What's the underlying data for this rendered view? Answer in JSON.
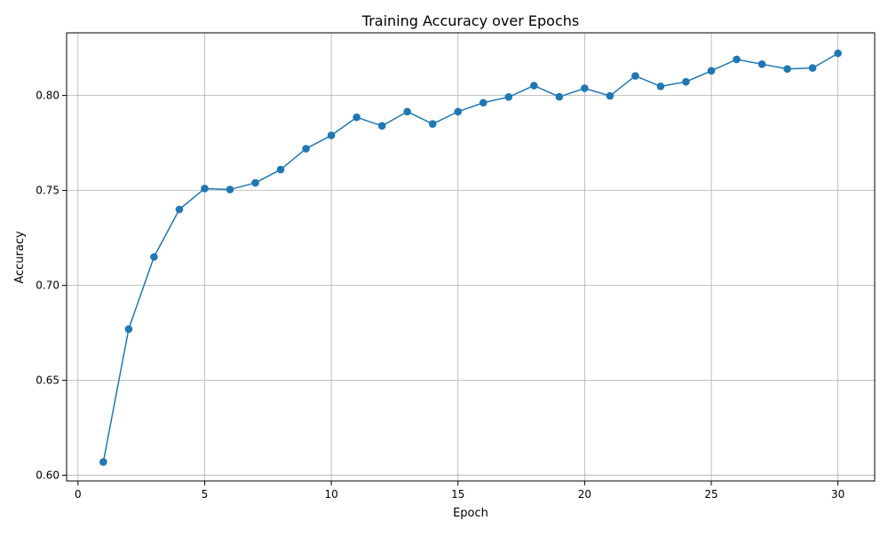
{
  "chart_data": {
    "type": "line",
    "title": "Training Accuracy over Epochs",
    "xlabel": "Epoch",
    "ylabel": "Accuracy",
    "xlim": [
      -0.45,
      31.45
    ],
    "ylim": [
      0.597,
      0.833
    ],
    "xticks": [
      0,
      5,
      10,
      15,
      20,
      25,
      30
    ],
    "xtick_labels": [
      "0",
      "5",
      "10",
      "15",
      "20",
      "25",
      "30"
    ],
    "yticks": [
      0.6,
      0.65,
      0.7,
      0.75,
      0.8
    ],
    "ytick_labels": [
      "0.60",
      "0.65",
      "0.70",
      "0.75",
      "0.80"
    ],
    "grid": true,
    "line_color": "#1f77b4",
    "marker": "circle",
    "series": [
      {
        "x": [
          1,
          2,
          3,
          4,
          5,
          6,
          7,
          8,
          9,
          10,
          11,
          12,
          13,
          14,
          15,
          16,
          17,
          18,
          19,
          20,
          21,
          22,
          23,
          24,
          25,
          26,
          27,
          28,
          29,
          30
        ],
        "values": [
          0.607,
          0.677,
          0.715,
          0.74,
          0.751,
          0.7505,
          0.754,
          0.761,
          0.772,
          0.779,
          0.7885,
          0.784,
          0.7915,
          0.785,
          0.7915,
          0.7962,
          0.7992,
          0.8052,
          0.7993,
          0.8038,
          0.7998,
          0.8103,
          0.8048,
          0.8072,
          0.813,
          0.819,
          0.8165,
          0.814,
          0.8145,
          0.8222
        ]
      }
    ]
  }
}
